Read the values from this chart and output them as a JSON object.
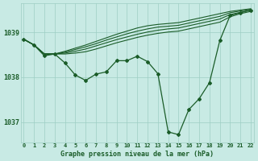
{
  "background_color": "#c8eae4",
  "line_color": "#1a5c28",
  "grid_color": "#9ecec4",
  "text_color": "#1a5c28",
  "xlabel": "Graphe pression niveau de la mer (hPa)",
  "yticks": [
    1037,
    1038,
    1039
  ],
  "xlim": [
    -0.3,
    22.3
  ],
  "ylim": [
    1036.55,
    1039.65
  ],
  "main_series": [
    1038.85,
    1038.72,
    1038.48,
    1038.52,
    1038.32,
    1038.05,
    1037.93,
    1038.07,
    1038.12,
    1038.37,
    1038.37,
    1038.47,
    1038.35,
    1038.08,
    1036.78,
    1036.72,
    1037.28,
    1037.52,
    1037.88,
    1038.82,
    1039.38,
    1039.44,
    1039.5
  ],
  "top_lines": [
    [
      1038.85,
      1038.72,
      1038.52,
      1038.52,
      1038.58,
      1038.65,
      1038.72,
      1038.8,
      1038.88,
      1038.96,
      1039.03,
      1039.1,
      1039.15,
      1039.18,
      1039.2,
      1039.22,
      1039.27,
      1039.32,
      1039.37,
      1039.42,
      1039.47,
      1039.5,
      1039.53
    ],
    [
      1038.85,
      1038.72,
      1038.52,
      1038.52,
      1038.56,
      1038.62,
      1038.68,
      1038.75,
      1038.83,
      1038.9,
      1038.97,
      1039.03,
      1039.08,
      1039.12,
      1039.14,
      1039.16,
      1039.21,
      1039.26,
      1039.31,
      1039.36,
      1039.44,
      1039.48,
      1039.52
    ],
    [
      1038.85,
      1038.72,
      1038.52,
      1038.52,
      1038.54,
      1038.58,
      1038.63,
      1038.7,
      1038.77,
      1038.84,
      1038.9,
      1038.96,
      1039.01,
      1039.05,
      1039.08,
      1039.1,
      1039.15,
      1039.2,
      1039.25,
      1039.3,
      1039.4,
      1039.45,
      1039.5
    ],
    [
      1038.85,
      1038.72,
      1038.52,
      1038.52,
      1038.52,
      1038.54,
      1038.57,
      1038.63,
      1038.7,
      1038.77,
      1038.83,
      1038.89,
      1038.94,
      1038.98,
      1039.01,
      1039.03,
      1039.08,
      1039.13,
      1039.18,
      1039.23,
      1039.35,
      1039.42,
      1039.47
    ]
  ]
}
